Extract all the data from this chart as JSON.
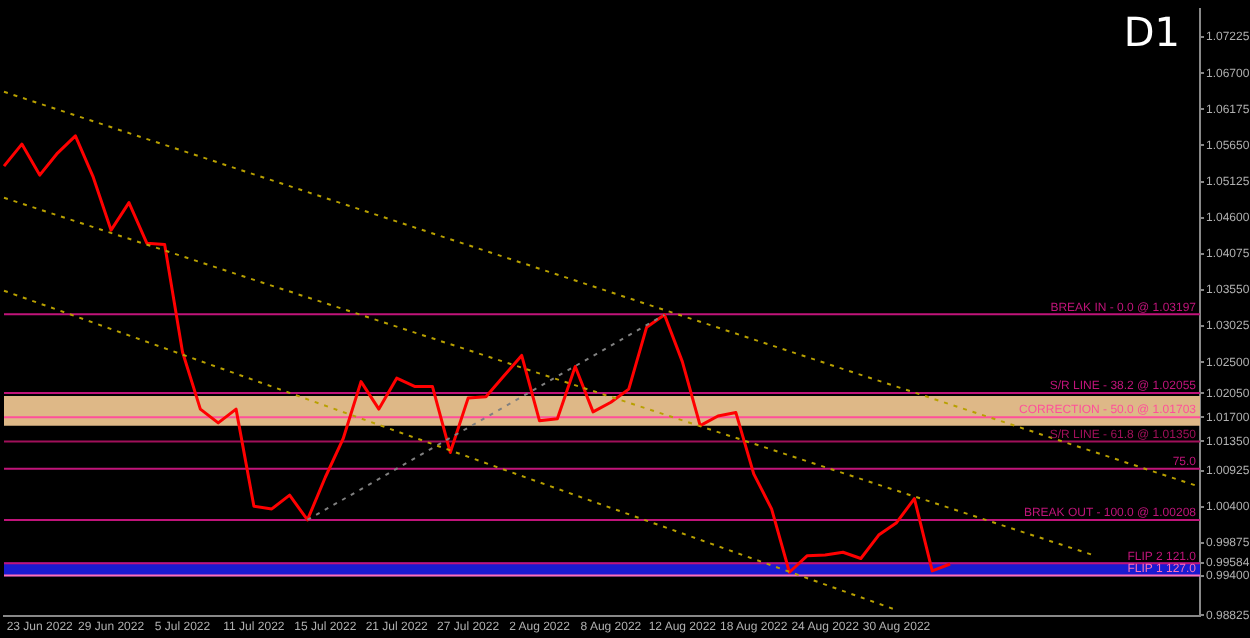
{
  "chart_data": {
    "type": "line",
    "title": "D1",
    "categories": [
      null,
      null,
      "23 Jun 2022",
      null,
      null,
      null,
      "29 Jun 2022",
      null,
      null,
      null,
      "5 Jul 2022",
      null,
      null,
      null,
      "11 Jul 2022",
      null,
      null,
      null,
      "15 Jul 2022",
      null,
      null,
      null,
      "21 Jul 2022",
      null,
      null,
      null,
      "27 Jul 2022",
      null,
      null,
      null,
      "2 Aug 2022",
      null,
      null,
      null,
      "8 Aug 2022",
      null,
      null,
      null,
      "12 Aug 2022",
      null,
      null,
      null,
      "18 Aug 2022",
      null,
      null,
      null,
      "24 Aug 2022",
      null,
      null,
      null,
      "30 Aug 2022",
      null,
      null,
      null,
      null,
      null,
      null,
      null,
      null,
      null,
      null,
      null,
      null,
      null,
      null,
      null,
      null,
      null
    ],
    "series": [
      {
        "color": "#b8a000",
        "line_style": "dotted",
        "values": [
          1.0643,
          null,
          null,
          null,
          null,
          null,
          null,
          null,
          null,
          null,
          null,
          null,
          null,
          null,
          null,
          null,
          null,
          null,
          null,
          null,
          null,
          null,
          null,
          null,
          null,
          null,
          null,
          null,
          null,
          null,
          null,
          null,
          null,
          null,
          null,
          null,
          null,
          null,
          null,
          null,
          null,
          null,
          null,
          null,
          null,
          null,
          null,
          null,
          null,
          null,
          null,
          null,
          null,
          null,
          null,
          null,
          null,
          null,
          null,
          null,
          null,
          null,
          null,
          null,
          null,
          null,
          null,
          1.0069
        ]
      },
      {
        "color": "#b8a000",
        "line_style": "dotted",
        "values": [
          1.0489,
          null,
          null,
          null,
          null,
          null,
          null,
          null,
          null,
          null,
          null,
          null,
          null,
          null,
          null,
          null,
          null,
          null,
          null,
          null,
          null,
          null,
          null,
          null,
          null,
          null,
          null,
          null,
          null,
          null,
          null,
          null,
          null,
          null,
          null,
          null,
          null,
          null,
          null,
          null,
          null,
          null,
          null,
          null,
          null,
          null,
          null,
          null,
          null,
          null,
          null,
          null,
          null,
          null,
          null,
          null,
          null,
          null,
          null,
          null,
          null,
          0.997,
          null,
          null,
          null,
          null,
          null,
          null
        ]
      },
      {
        "color": "#b8a000",
        "line_style": "dotted",
        "values": [
          1.0354,
          null,
          null,
          null,
          null,
          null,
          null,
          null,
          null,
          null,
          null,
          null,
          null,
          null,
          null,
          null,
          null,
          null,
          null,
          null,
          null,
          null,
          null,
          null,
          null,
          null,
          null,
          null,
          null,
          null,
          null,
          null,
          null,
          null,
          null,
          null,
          null,
          null,
          null,
          null,
          null,
          null,
          null,
          null,
          null,
          null,
          null,
          null,
          null,
          null,
          0.989,
          null,
          null,
          null,
          null,
          null,
          null,
          null,
          null,
          null,
          null,
          null,
          null,
          null,
          null,
          null,
          null,
          null
        ]
      },
      {
        "color": "#808080",
        "line_style": "dotted",
        "values": [
          null,
          null,
          null,
          null,
          null,
          null,
          null,
          null,
          null,
          null,
          null,
          null,
          null,
          null,
          null,
          null,
          null,
          1.0021,
          null,
          null,
          null,
          null,
          null,
          null,
          null,
          null,
          null,
          null,
          null,
          null,
          null,
          null,
          null,
          null,
          null,
          null,
          null,
          1.0319,
          null,
          null,
          null,
          null,
          null,
          null,
          null,
          null,
          null,
          null,
          null,
          null,
          null,
          null,
          null,
          null,
          null,
          null,
          null,
          null,
          null,
          null,
          null,
          null,
          null,
          null,
          null,
          null,
          null,
          null
        ]
      },
      {
        "color": "#ff0000",
        "line_style": "solid",
        "values": [
          1.0535,
          1.0567,
          1.0522,
          1.0554,
          1.0579,
          1.0519,
          1.0442,
          1.0482,
          1.0423,
          1.0421,
          1.0265,
          1.0182,
          1.0162,
          1.0182,
          1.0041,
          1.0037,
          1.0057,
          1.0021,
          1.0083,
          1.0139,
          1.0222,
          1.0182,
          1.0227,
          1.0215,
          1.0215,
          1.0119,
          1.0198,
          1.02,
          1.023,
          1.026,
          1.0165,
          1.0168,
          1.0244,
          1.0178,
          1.0192,
          1.0211,
          1.0301,
          1.0319,
          1.0251,
          1.0158,
          1.0172,
          1.0177,
          1.0088,
          1.0037,
          0.9945,
          0.9969,
          0.997,
          0.9974,
          0.9965,
          0.9999,
          1.0017,
          1.0052,
          0.9947,
          0.9957,
          null,
          null,
          null,
          null,
          null,
          null,
          null,
          null,
          null,
          null,
          null,
          null,
          null,
          null
        ]
      }
    ],
    "ylim": [
      0.9882,
      1.0763
    ],
    "yticks": [
      {
        "value": 1.07225,
        "label": "1.07225"
      },
      {
        "value": 1.067,
        "label": "1.06700"
      },
      {
        "value": 1.06175,
        "label": "1.06175"
      },
      {
        "value": 1.0565,
        "label": "1.05650"
      },
      {
        "value": 1.05125,
        "label": "1.05125"
      },
      {
        "value": 1.046,
        "label": "1.04600"
      },
      {
        "value": 1.04075,
        "label": "1.04075"
      },
      {
        "value": 1.0355,
        "label": "1.03550"
      },
      {
        "value": 1.03025,
        "label": "1.03025"
      },
      {
        "value": 1.025,
        "label": "1.02500"
      },
      {
        "value": 1.0205,
        "label": "1.02050"
      },
      {
        "value": 1.017,
        "label": "1.01700"
      },
      {
        "value": 1.0135,
        "label": "1.01350"
      },
      {
        "value": 1.00925,
        "label": "1.00925"
      },
      {
        "value": 1.004,
        "label": "1.00400"
      },
      {
        "value": 0.99875,
        "label": "0.99875"
      },
      {
        "value": 0.99584,
        "label": "0.99584"
      },
      {
        "value": 0.994,
        "label": "0.99400"
      },
      {
        "value": 0.98825,
        "label": "0.98825"
      }
    ],
    "ref_lines": [
      {
        "axis": "y",
        "value": 1.03197,
        "label": "BREAK IN - 0.0 @ 1.03197",
        "color": "#c0147a"
      },
      {
        "axis": "y",
        "value": 1.02055,
        "label": "S/R LINE - 38.2 @ 1.02055",
        "color": "#c0147a"
      },
      {
        "axis": "y",
        "value": 1.01703,
        "label": "CORRECTION - 50.0 @ 1.01703",
        "color": "#ff4f9a"
      },
      {
        "axis": "y",
        "value": 1.0135,
        "label": "S/R LINE - 61.8 @ 1.01350",
        "color": "#a0105a"
      },
      {
        "axis": "y",
        "value": 1.00955,
        "color": "#c0147a"
      },
      {
        "axis": "y",
        "value": 1.00208,
        "label": "BREAK OUT - 100.0 @ 1.00208",
        "color": "#c0147a"
      },
      {
        "axis": "y",
        "value": 0.9958,
        "label": "FLIP 2 121.0",
        "color": "#c0147a"
      },
      {
        "axis": "y",
        "value": 0.99401,
        "label": "FLIP 1 127.0",
        "color": "#ff70b8"
      }
    ],
    "annotations": [
      {
        "text": "75.0",
        "y": 1.00955
      }
    ],
    "bands": [
      {
        "axis": "y",
        "from": 1.0158,
        "to": 1.0201,
        "color": "#deb887"
      },
      {
        "axis": "y",
        "from": 0.9939,
        "to": 0.9959,
        "color": "#1a1ad0"
      }
    ],
    "grid": false,
    "legend": false
  }
}
